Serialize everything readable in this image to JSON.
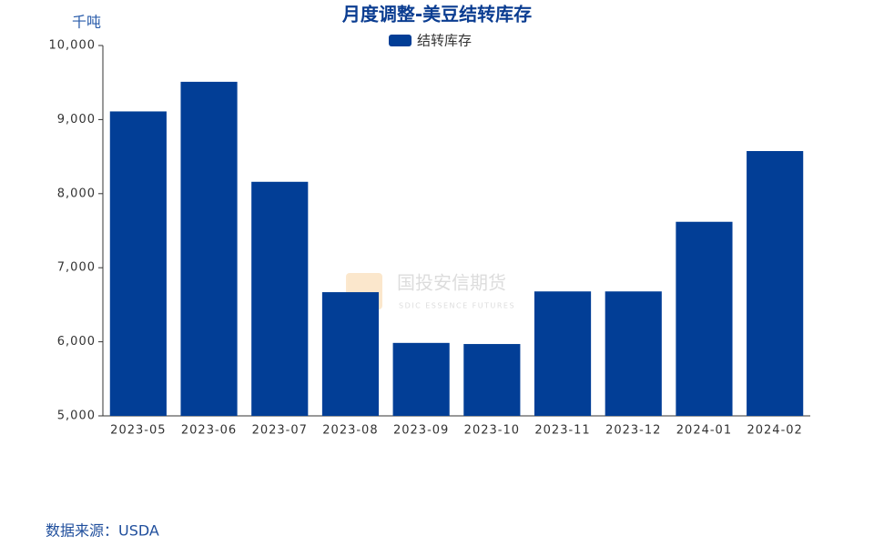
{
  "chart_data": {
    "type": "bar",
    "title": "月度调整-美豆结转库存",
    "y_label": "千吨",
    "categories": [
      "2023-05",
      "2023-06",
      "2023-07",
      "2023-08",
      "2023-09",
      "2023-10",
      "2023-11",
      "2023-12",
      "2024-01",
      "2024-02"
    ],
    "series": [
      {
        "name": "结转库存",
        "color": "#023e96",
        "values": [
          9110,
          9510,
          8160,
          6670,
          5985,
          5970,
          6680,
          6680,
          7620,
          8575
        ]
      }
    ],
    "ylim": [
      5000,
      10000
    ],
    "yticks": [
      {
        "value": 5000,
        "label": "5,000"
      },
      {
        "value": 6000,
        "label": "6,000"
      },
      {
        "value": 7000,
        "label": "7,000"
      },
      {
        "value": 8000,
        "label": "8,000"
      },
      {
        "value": 9000,
        "label": "9,000"
      },
      {
        "value": 10000,
        "label": "10,000"
      }
    ],
    "legend": "top",
    "source": "数据来源：USDA",
    "watermark": {
      "name": "国投安信期货",
      "subtitle": "SDIC ESSENCE FUTURES"
    }
  }
}
